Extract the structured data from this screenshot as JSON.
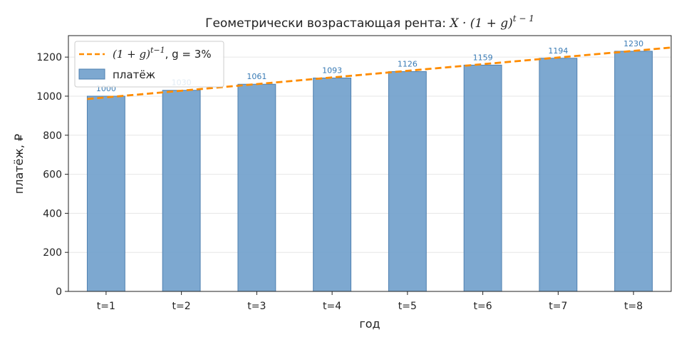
{
  "chart_data": {
    "type": "bar",
    "title_prefix": "Геометрически возрастающая рента: ",
    "title_formula": "X · (1 + g)",
    "title_exponent": "t − 1",
    "xlabel": "год",
    "ylabel": "платёж, ₽",
    "categories": [
      "t=1",
      "t=2",
      "t=3",
      "t=4",
      "t=5",
      "t=6",
      "t=7",
      "t=8"
    ],
    "series": [
      {
        "name": "платёж",
        "type": "bar",
        "values": [
          1000,
          1030,
          1061,
          1093,
          1126,
          1159,
          1194,
          1230
        ],
        "color": "#6f9fcb"
      },
      {
        "name": "(1 + g)^(t−1), g = 3%",
        "type": "line",
        "style": "dashed",
        "color": "#ff8c00",
        "x": [
          0.75,
          8.5
        ],
        "values": [
          985.3,
          1248.9
        ]
      }
    ],
    "legend": {
      "placement": "top-left",
      "line_entry_base": "(1 + g)",
      "line_entry_exponent": "t−1",
      "line_entry_suffix": ", g = 3%",
      "bar_entry": "платёж"
    },
    "data_labels": [
      "1000",
      "1030",
      "1061",
      "1093",
      "1126",
      "1159",
      "1194",
      "1230"
    ],
    "yticks": [
      "0",
      "200",
      "400",
      "600",
      "800",
      "1000",
      "1200"
    ],
    "ylim": [
      0,
      1310
    ],
    "grid": "y"
  }
}
